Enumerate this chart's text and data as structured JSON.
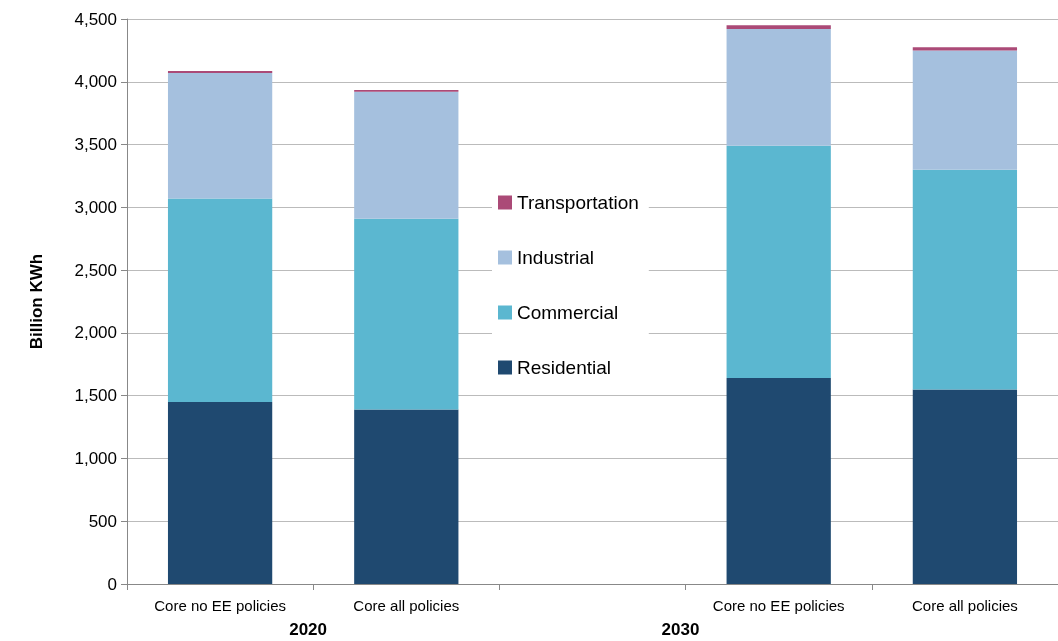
{
  "chart_data": {
    "type": "bar",
    "stacked": true,
    "ylabel": "Billion KWh",
    "categories": [
      "Core no EE policies",
      "Core all policies",
      null,
      "Core no EE policies",
      "Core all policies"
    ],
    "series": [
      {
        "name": "Residential",
        "color": "#1f4970",
        "values": [
          1450,
          1390,
          null,
          1640,
          1550
        ]
      },
      {
        "name": "Commercial",
        "color": "#5bb7d0",
        "values": [
          1620,
          1520,
          null,
          1850,
          1750
        ]
      },
      {
        "name": "Industrial",
        "color": "#a5c0de",
        "values": [
          1000,
          1010,
          null,
          930,
          950
        ]
      },
      {
        "name": "Transportation",
        "color": "#ab4a77",
        "values": [
          15,
          15,
          null,
          30,
          25
        ]
      }
    ],
    "ylim": [
      0,
      4500
    ],
    "yticks": [
      0,
      500,
      {
        "value": 1000,
        "label": "1,000"
      },
      {
        "value": 1500,
        "label": "1,500"
      },
      {
        "value": 2000,
        "label": "2,000"
      },
      {
        "value": 2500,
        "label": "2,500"
      },
      {
        "value": 3000,
        "label": "3,000"
      },
      {
        "value": 3500,
        "label": "3,500"
      },
      {
        "value": 4000,
        "label": "4,000"
      },
      {
        "value": 4500,
        "label": "4,500"
      }
    ],
    "grid": "y",
    "legend": "center",
    "annotations": [
      "2020",
      "2030"
    ]
  }
}
